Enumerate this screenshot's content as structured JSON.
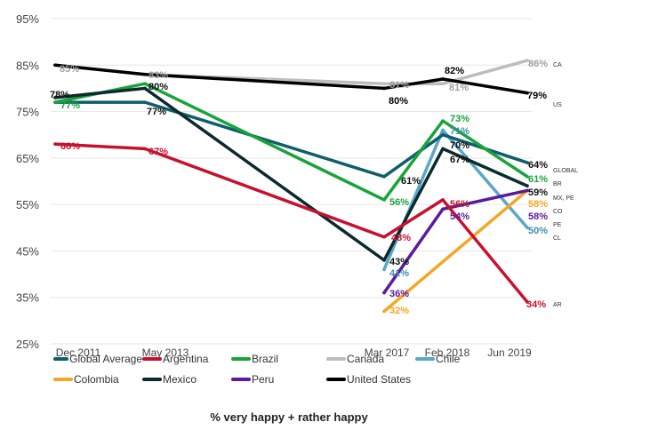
{
  "chart_data": {
    "type": "line",
    "title": "% very happy + rather happy",
    "x": [
      "Dec 2011",
      "May 2013",
      "Mar 2017",
      "Feb 2018",
      "Jun 2019"
    ],
    "ylim": [
      25,
      95
    ],
    "yticks": [
      "25%",
      "35%",
      "45%",
      "55%",
      "65%",
      "75%",
      "85%",
      "95%"
    ],
    "grid": true,
    "legend_placement": "bottom",
    "series": [
      {
        "name": "Global Average",
        "color": "#0f5e6b",
        "values": [
          77,
          77,
          61,
          70,
          64
        ],
        "labels": [
          null,
          "77%",
          "61%",
          "70%",
          "64%"
        ],
        "label_color": "#111111",
        "code": "GLOBAL"
      },
      {
        "name": "Argentina",
        "color": "#c8102e",
        "values": [
          68,
          67,
          48,
          56,
          34
        ],
        "labels": [
          "68%",
          "67%",
          "48%",
          "56%",
          "34%"
        ],
        "label_color": "#c8102e",
        "code": "AR"
      },
      {
        "name": "Brazil",
        "color": "#19a33b",
        "values": [
          77,
          81,
          56,
          73,
          61
        ],
        "labels": [
          "77%",
          null,
          "56%",
          "73%",
          "61%"
        ],
        "label_color": "#19a33b",
        "code": "BR"
      },
      {
        "name": "Canada",
        "color": "#bdbdbd",
        "values": [
          85,
          83,
          81,
          81,
          86
        ],
        "labels": [
          "85%",
          "83%",
          "81%",
          "81%",
          "86%"
        ],
        "label_color": "#9e9e9e",
        "code": "CA"
      },
      {
        "name": "Chile",
        "color": "#5aa7c6",
        "values": [
          null,
          null,
          41,
          71,
          50
        ],
        "labels": [
          null,
          null,
          "41%",
          "71%",
          "50%"
        ],
        "label_color": "#3d8fb0",
        "code": "CL"
      },
      {
        "name": "Colombia",
        "color": "#f5a623",
        "values": [
          null,
          null,
          32,
          null,
          58
        ],
        "labels": [
          null,
          null,
          "32%",
          null,
          "58%"
        ],
        "label_color": "#f5a623",
        "code": "CO"
      },
      {
        "name": "Mexico",
        "color": "#0b2a2e",
        "values": [
          78,
          80,
          43,
          67,
          59
        ],
        "labels": [
          "78%",
          "80%",
          "43%",
          "67%",
          "59%"
        ],
        "label_color": "#111111",
        "code": "MX, PE"
      },
      {
        "name": "Peru",
        "color": "#5b1a9e",
        "values": [
          null,
          null,
          36,
          54,
          58
        ],
        "labels": [
          null,
          null,
          "36%",
          "54%",
          "58%"
        ],
        "label_color": "#5b1a9e",
        "code": "PE"
      },
      {
        "name": "United States",
        "color": "#000000",
        "values": [
          85,
          83,
          80,
          82,
          79
        ],
        "labels": [
          null,
          null,
          "80%",
          "82%",
          "79%"
        ],
        "label_color": "#000000",
        "code": "US"
      }
    ]
  }
}
